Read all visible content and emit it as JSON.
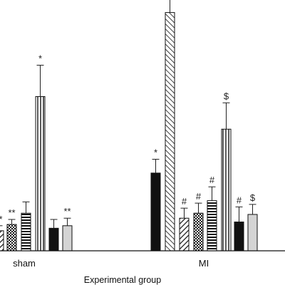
{
  "chart_data": {
    "type": "bar",
    "xlabel": "Experimental group",
    "ylabel": "",
    "title": "",
    "ylim": [
      0,
      200
    ],
    "categories": [
      "sham",
      "MI"
    ],
    "series_styles": [
      {
        "fill": "#111111",
        "pattern": "solid"
      },
      {
        "fill": "#ffffff",
        "pattern": "diag-down"
      },
      {
        "fill": "#ffffff",
        "pattern": "crosshatch"
      },
      {
        "fill": "#ffffff",
        "pattern": "horizontal"
      },
      {
        "fill": "#ffffff",
        "pattern": "diag-up"
      },
      {
        "fill": "#ffffff",
        "pattern": "vertical"
      },
      {
        "fill": "#111111",
        "pattern": "solid"
      },
      {
        "fill": "#d4d4d4",
        "pattern": "solid"
      }
    ],
    "groups": [
      {
        "name": "sham",
        "bars": [
          {
            "series": 0,
            "value": 8,
            "error": 2,
            "label": ""
          },
          {
            "series": 1,
            "value": 16,
            "error": 4,
            "label": "**"
          },
          {
            "series": 2,
            "value": 21,
            "error": 4,
            "label": "**"
          },
          {
            "series": 3,
            "value": 30,
            "error": 9,
            "label": ""
          },
          {
            "series": 5,
            "value": 123,
            "error": 25,
            "label": "*"
          },
          {
            "series": 6,
            "value": 18,
            "error": 7,
            "label": ""
          },
          {
            "series": 7,
            "value": 20,
            "error": 6,
            "label": "**"
          }
        ]
      },
      {
        "name": "MI",
        "bars": [
          {
            "series": 0,
            "value": 62,
            "error": 11,
            "label": "*"
          },
          {
            "series": 4,
            "value": 190,
            "error": 24,
            "label": "#"
          },
          {
            "series": 1,
            "value": 26,
            "error": 8,
            "label": "#"
          },
          {
            "series": 2,
            "value": 30,
            "error": 8,
            "label": "#"
          },
          {
            "series": 3,
            "value": 40,
            "error": 11,
            "label": "#"
          },
          {
            "series": 5,
            "value": 97,
            "error": 21,
            "label": "$"
          },
          {
            "series": 6,
            "value": 23,
            "error": 12,
            "label": "#"
          },
          {
            "series": 7,
            "value": 29,
            "error": 8,
            "label": "$"
          }
        ]
      }
    ]
  }
}
